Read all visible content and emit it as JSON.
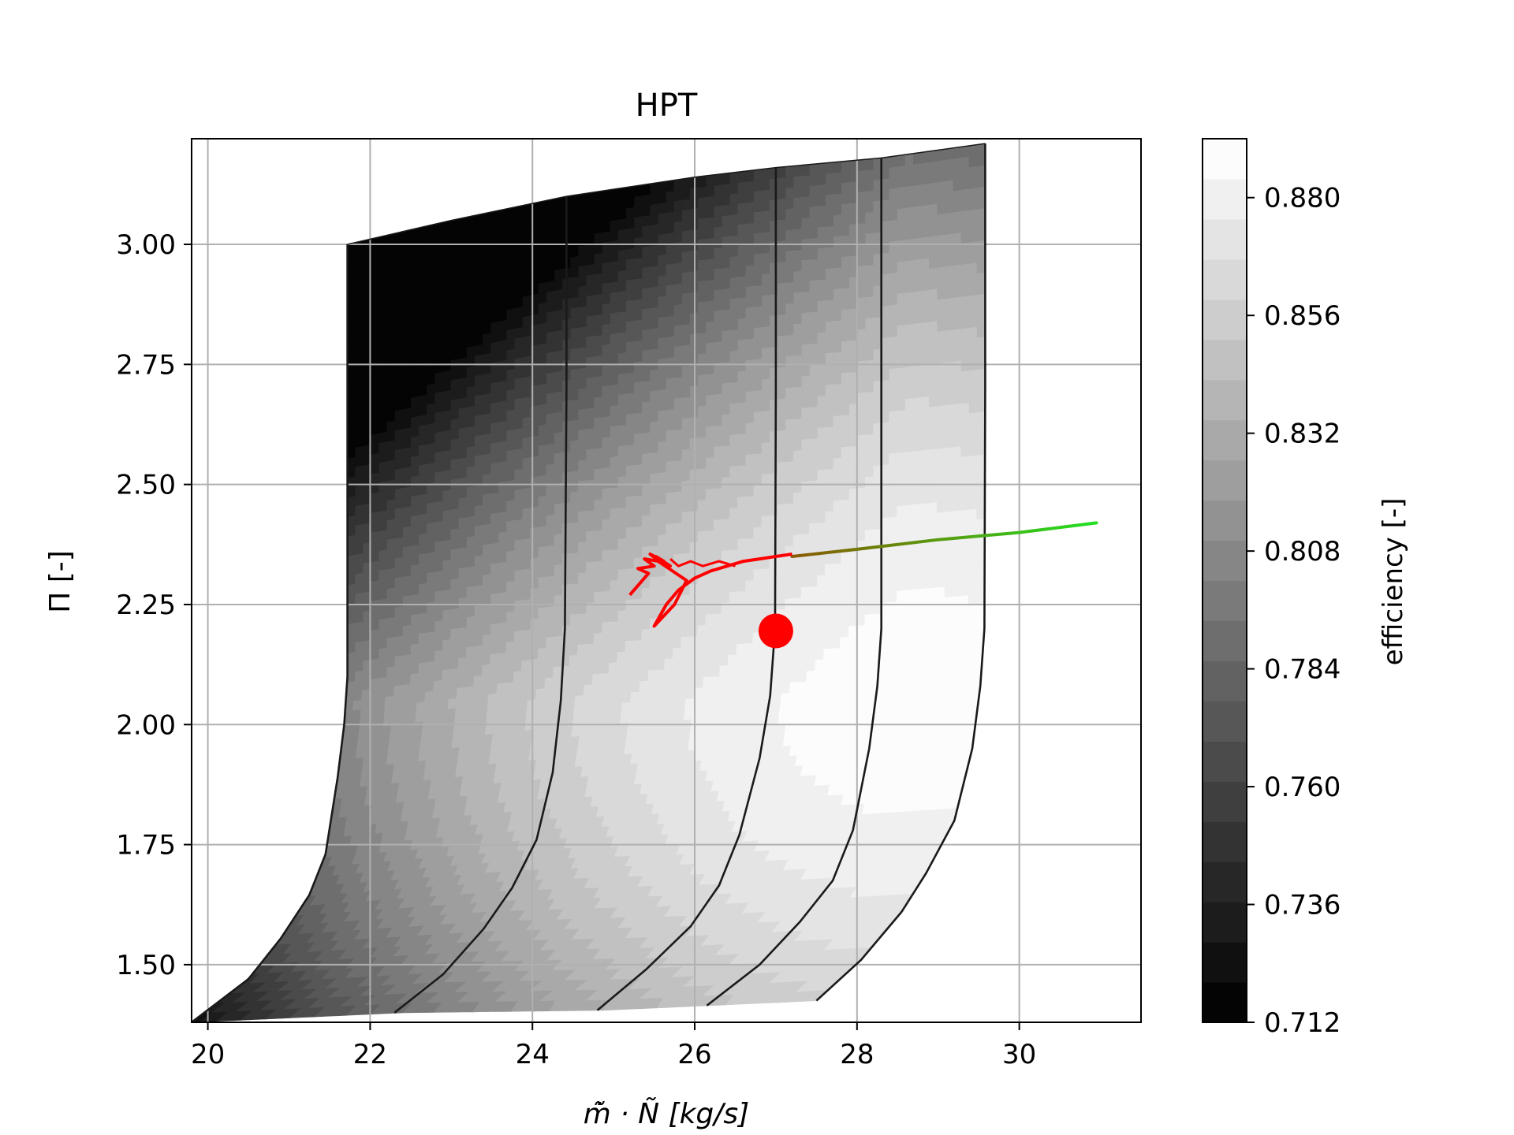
{
  "chart_data": {
    "type": "contour",
    "title": "HPT",
    "xlabel": "m̃̇ · Ñ [kg/s]",
    "ylabel": "Π [-]",
    "xlim": [
      19.8,
      31.5
    ],
    "ylim": [
      1.38,
      3.22
    ],
    "xticks": [
      20,
      22,
      24,
      26,
      28,
      30
    ],
    "yticks": [
      1.5,
      1.75,
      2.0,
      2.25,
      2.5,
      2.75,
      3.0
    ],
    "xtick_labels": [
      "20",
      "22",
      "24",
      "26",
      "28",
      "30"
    ],
    "ytick_labels": [
      "1.50",
      "1.75",
      "2.00",
      "2.25",
      "2.50",
      "2.75",
      "3.00"
    ],
    "grid": true,
    "colorbar": {
      "label": "efficiency [-]",
      "range": [
        0.712,
        0.892
      ],
      "ticks": [
        0.712,
        0.736,
        0.76,
        0.784,
        0.808,
        0.832,
        0.856,
        0.88
      ],
      "tick_labels": [
        "0.712",
        "0.736",
        "0.760",
        "0.784",
        "0.808",
        "0.832",
        "0.856",
        "0.880"
      ],
      "levels": 22,
      "colormap": "gray"
    },
    "speed_lines": [
      {
        "x": [
          19.8,
          20.5,
          20.9,
          21.25,
          21.45,
          21.6,
          21.68,
          21.72,
          21.72,
          21.72
        ],
        "y": [
          1.38,
          1.47,
          1.555,
          1.645,
          1.73,
          1.89,
          2.0,
          2.1,
          2.5,
          3.0
        ]
      },
      {
        "x": [
          22.3,
          22.9,
          23.4,
          23.75,
          24.05,
          24.25,
          24.35,
          24.4,
          24.42,
          24.42
        ],
        "y": [
          1.4,
          1.48,
          1.575,
          1.66,
          1.76,
          1.9,
          2.05,
          2.2,
          2.7,
          3.1
        ]
      },
      {
        "x": [
          24.8,
          25.4,
          25.95,
          26.3,
          26.55,
          26.8,
          26.93,
          26.99,
          27.0,
          27.0
        ],
        "y": [
          1.405,
          1.49,
          1.58,
          1.665,
          1.77,
          1.93,
          2.06,
          2.2,
          2.7,
          3.16
        ]
      },
      {
        "x": [
          26.15,
          26.8,
          27.3,
          27.7,
          27.95,
          28.15,
          28.25,
          28.3,
          28.3,
          28.3
        ],
        "y": [
          1.415,
          1.5,
          1.59,
          1.675,
          1.78,
          1.95,
          2.08,
          2.2,
          2.7,
          3.18
        ]
      },
      {
        "x": [
          27.5,
          28.05,
          28.55,
          28.85,
          29.2,
          29.42,
          29.52,
          29.57,
          29.58,
          29.58
        ],
        "y": [
          1.425,
          1.51,
          1.61,
          1.69,
          1.8,
          1.95,
          2.08,
          2.2,
          2.7,
          3.21
        ]
      }
    ],
    "map_top_edge": {
      "x": [
        21.72,
        23.0,
        24.42,
        26.0,
        27.0,
        28.3,
        29.58
      ],
      "y": [
        3.0,
        3.05,
        3.1,
        3.14,
        3.16,
        3.18,
        3.21
      ]
    },
    "map_bottom_edge": {
      "x": [
        19.8,
        22.3,
        24.8,
        26.15,
        27.5
      ],
      "y": [
        1.38,
        1.4,
        1.405,
        1.415,
        1.425
      ]
    },
    "efficiency_peak": {
      "x": 28.6,
      "y": 2.05
    },
    "transient_red": {
      "x": [
        27.2,
        27.0,
        26.8,
        26.6,
        26.4,
        26.2,
        26.0,
        25.8,
        25.65,
        25.5,
        25.75,
        25.9,
        25.55,
        25.7,
        25.52,
        25.62,
        25.45,
        25.56,
        25.38,
        25.5,
        25.3,
        25.43,
        25.2
      ],
      "y": [
        2.355,
        2.35,
        2.345,
        2.34,
        2.33,
        2.32,
        2.305,
        2.28,
        2.25,
        2.205,
        2.25,
        2.3,
        2.34,
        2.33,
        2.35,
        2.34,
        2.355,
        2.34,
        2.345,
        2.33,
        2.325,
        2.315,
        2.27
      ]
    },
    "transient_wiggles": {
      "x": [
        26.5,
        26.3,
        26.1,
        25.95,
        25.8,
        25.7
      ],
      "y": [
        2.33,
        2.34,
        2.33,
        2.34,
        2.33,
        2.345
      ]
    },
    "transient_gradient": {
      "x": [
        27.2,
        28.0,
        29.0,
        30.0,
        30.95
      ],
      "y": [
        2.35,
        2.365,
        2.385,
        2.4,
        2.42
      ],
      "color_start": "#8a5a00",
      "color_end": "#22e022"
    },
    "design_point": {
      "x": 27.0,
      "y": 2.195,
      "color": "#ff0000"
    },
    "red_color": "#ff0000"
  }
}
